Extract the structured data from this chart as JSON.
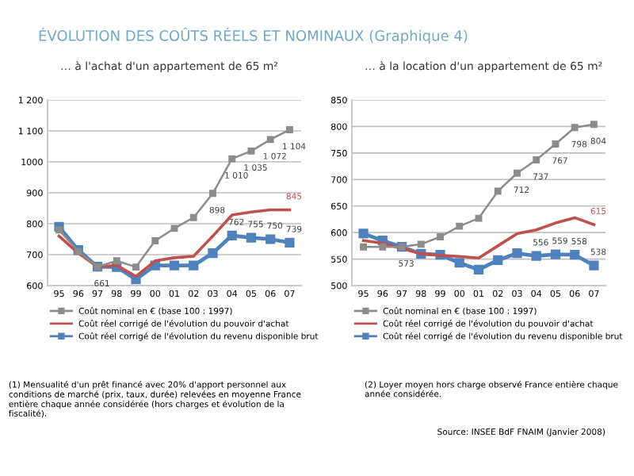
{
  "chart_data": [
    {
      "type": "line",
      "title": "ÉVOLUTION DES COÛTS RÉELS ET NOMINAUX (Graphique 4)",
      "subtitle": "… à l'achat d'un appartement de 65 m²",
      "categories": [
        "95",
        "96",
        "97",
        "98",
        "99",
        "00",
        "01",
        "02",
        "03",
        "04",
        "05",
        "06",
        "07"
      ],
      "ylim": [
        600,
        1200
      ],
      "yticks": [
        600,
        700,
        800,
        900,
        1000,
        {
          "value": 1100,
          "label": "1 100"
        },
        {
          "value": 1200,
          "label": "1 200"
        }
      ],
      "grid": "y",
      "legend": "bottom",
      "series": [
        {
          "name": "Coût nominal en € (base 100 : 1997)",
          "color": "#8c8c8c",
          "marker": "square",
          "values": [
            780,
            710,
            661,
            680,
            660,
            745,
            785,
            820,
            898,
            1010,
            1035,
            1072,
            1104
          ],
          "value_labels": [
            null,
            null,
            "661",
            null,
            null,
            null,
            null,
            null,
            "898",
            "1 010",
            "1 035",
            "1 072",
            "1 104"
          ]
        },
        {
          "name": "Coût réel corrigé de l'évolution du pouvoir d'achat",
          "color": "#c0504d",
          "marker": "none",
          "values": [
            760,
            705,
            661,
            665,
            630,
            680,
            690,
            695,
            760,
            828,
            838,
            845,
            845
          ],
          "value_labels": [
            null,
            null,
            null,
            null,
            null,
            null,
            null,
            null,
            null,
            null,
            null,
            null,
            "845"
          ]
        },
        {
          "name": "Coût réel corrigé de l'évolution du revenu disponible brut",
          "color": "#4f81bd",
          "marker": "square",
          "values": [
            790,
            715,
            661,
            660,
            620,
            665,
            665,
            665,
            705,
            762,
            755,
            750,
            739
          ],
          "value_labels": [
            null,
            null,
            null,
            null,
            null,
            null,
            null,
            null,
            null,
            "762",
            "755",
            "750",
            "739"
          ]
        }
      ],
      "annotations": [
        "(1) Mensualité d'un prêt financé avec 20% d'apport personnel aux conditions de marché (prix, taux, durée) relevées en moyenne France entière chaque année considérée (hors charges et évolution de la fiscalité)."
      ]
    },
    {
      "type": "line",
      "subtitle": "… à la location d'un appartement de 65 m²",
      "categories": [
        "95",
        "96",
        "97",
        "98",
        "99",
        "00",
        "01",
        "02",
        "03",
        "04",
        "05",
        "06",
        "07"
      ],
      "ylim": [
        500,
        850
      ],
      "yticks": [
        500,
        550,
        600,
        650,
        700,
        750,
        800,
        850
      ],
      "grid": "y",
      "legend": "bottom",
      "series": [
        {
          "name": "Coût nominal en € (base 100 : 1997)",
          "color": "#8c8c8c",
          "marker": "square",
          "values": [
            573,
            573,
            573,
            578,
            592,
            612,
            627,
            678,
            712,
            737,
            767,
            798,
            804
          ],
          "value_labels": [
            null,
            null,
            "573",
            null,
            null,
            null,
            null,
            null,
            "712",
            "737",
            "767",
            "798",
            "804"
          ]
        },
        {
          "name": "Coût réel corrigé de l'évolution du pouvoir d'achat",
          "color": "#c0504d",
          "marker": "none",
          "values": [
            585,
            580,
            570,
            560,
            557,
            555,
            552,
            575,
            598,
            605,
            618,
            628,
            615
          ],
          "value_labels": [
            null,
            null,
            null,
            null,
            null,
            null,
            null,
            null,
            null,
            null,
            null,
            null,
            "615"
          ]
        },
        {
          "name": "Coût réel corrigé de l'évolution du revenu disponible brut",
          "color": "#4f81bd",
          "marker": "square",
          "values": [
            598,
            585,
            573,
            560,
            558,
            543,
            530,
            548,
            561,
            556,
            559,
            558,
            538
          ],
          "value_labels": [
            null,
            null,
            null,
            null,
            null,
            null,
            null,
            null,
            null,
            "556",
            "559",
            "558",
            "538"
          ]
        }
      ],
      "annotations": [
        "(2) Loyer moyen hors charge observé France entière chaque année considérée.",
        "Source: INSEE BdF FNAIM (Janvier 2008)"
      ]
    }
  ]
}
